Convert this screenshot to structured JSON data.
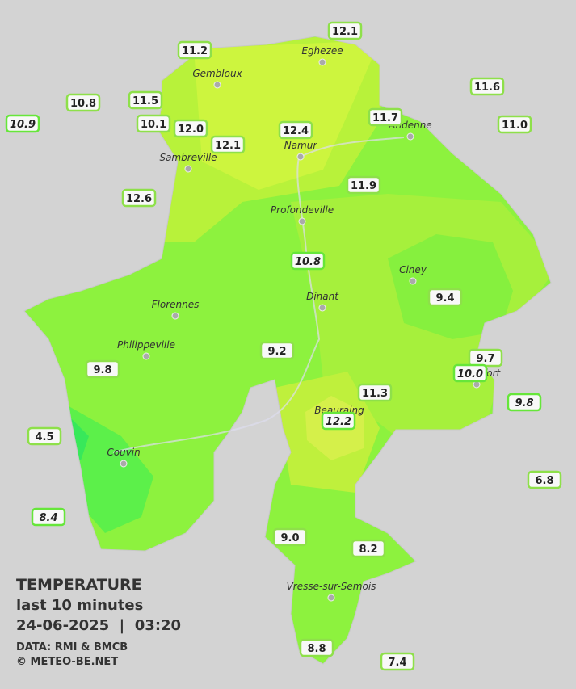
{
  "legend": {
    "title": "TEMPERATURE",
    "subtitle": "last 10 minutes",
    "datetime": "24-06-2025  |  03:20",
    "source": "DATA: RMI & BMCB",
    "credit": "© METEO-BE.NET"
  },
  "towns": [
    "Eghezee",
    "Gembloux",
    "Andenne",
    "Namur",
    "Sambreville",
    "Profondeville",
    "Ciney",
    "Dinant",
    "Florennes",
    "Philippeville",
    "Rochefort",
    "Beauraing",
    "Couvin",
    "Vresse-sur-Semois"
  ],
  "stations": [
    {
      "label": "12.1",
      "italic": false
    },
    {
      "label": "11.2",
      "italic": false
    },
    {
      "label": "11.6",
      "italic": false
    },
    {
      "label": "10.8",
      "italic": false
    },
    {
      "label": "11.5",
      "italic": false
    },
    {
      "label": "10.9",
      "italic": true
    },
    {
      "label": "10.1",
      "italic": false
    },
    {
      "label": "12.0",
      "italic": false
    },
    {
      "label": "12.4",
      "italic": false
    },
    {
      "label": "11.7",
      "italic": false
    },
    {
      "label": "11.0",
      "italic": false
    },
    {
      "label": "12.1",
      "italic": false
    },
    {
      "label": "11.9",
      "italic": false
    },
    {
      "label": "12.6",
      "italic": false
    },
    {
      "label": "10.8",
      "italic": true
    },
    {
      "label": "9.4",
      "italic": false
    },
    {
      "label": "9.2",
      "italic": false
    },
    {
      "label": "9.7",
      "italic": false
    },
    {
      "label": "10.0",
      "italic": true
    },
    {
      "label": "9.8",
      "italic": false
    },
    {
      "label": "9.8",
      "italic": true
    },
    {
      "label": "11.3",
      "italic": false
    },
    {
      "label": "12.2",
      "italic": true
    },
    {
      "label": "4.5",
      "italic": false
    },
    {
      "label": "6.8",
      "italic": false
    },
    {
      "label": "8.4",
      "italic": true
    },
    {
      "label": "9.0",
      "italic": false
    },
    {
      "label": "8.2",
      "italic": false
    },
    {
      "label": "8.8",
      "italic": false
    },
    {
      "label": "7.4",
      "italic": false
    }
  ]
}
